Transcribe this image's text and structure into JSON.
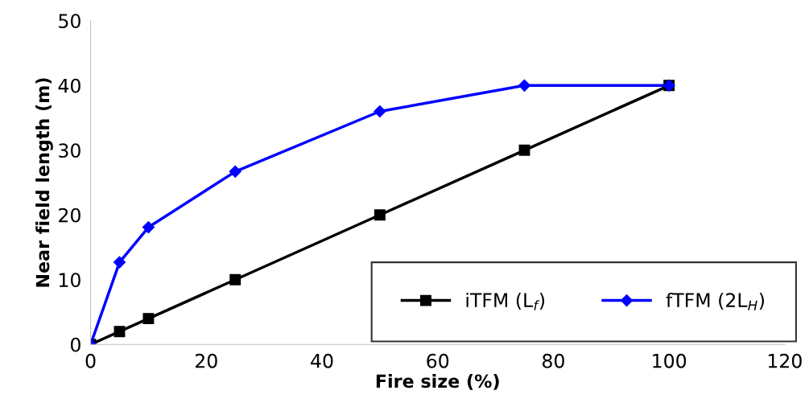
{
  "chart_data": {
    "type": "line",
    "xlabel": "Fire size (%)",
    "ylabel": "Near field length (m)",
    "x": [
      0,
      5,
      10,
      25,
      50,
      75,
      100
    ],
    "series": [
      {
        "name": "iTFM (L$_{f}$)",
        "color": "#000000",
        "marker": "square",
        "values": [
          0,
          2,
          4,
          10,
          20,
          30,
          40
        ]
      },
      {
        "name": "fTFM (2L$_{H}$)",
        "color": "#0000ff",
        "marker": "diamond",
        "values": [
          0,
          12.7,
          18.1,
          26.7,
          36.0,
          40.0,
          40.0
        ]
      }
    ],
    "xlim": [
      0,
      120
    ],
    "xticks": [
      0,
      20,
      40,
      60,
      80,
      100,
      120
    ],
    "ylim": [
      0,
      50
    ],
    "yticks": [
      0,
      10,
      20,
      30,
      40,
      50
    ],
    "grid": false,
    "legend": "bottom right"
  }
}
